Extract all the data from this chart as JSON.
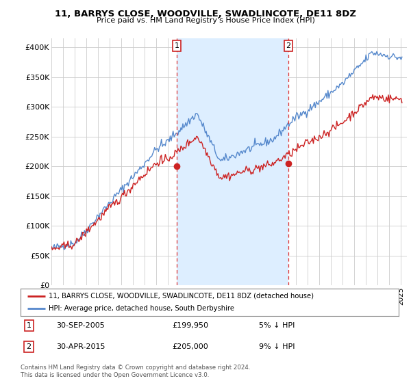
{
  "title": "11, BARRYS CLOSE, WOODVILLE, SWADLINCOTE, DE11 8DZ",
  "subtitle": "Price paid vs. HM Land Registry's House Price Index (HPI)",
  "yticks": [
    0,
    50000,
    100000,
    150000,
    200000,
    250000,
    300000,
    350000,
    400000
  ],
  "ytick_labels": [
    "£0",
    "£50K",
    "£100K",
    "£150K",
    "£200K",
    "£250K",
    "£300K",
    "£350K",
    "£400K"
  ],
  "hpi_color": "#5588cc",
  "price_color": "#cc2222",
  "vline_color": "#dd3333",
  "shade_color": "#ddeeff",
  "legend_label_price": "11, BARRYS CLOSE, WOODVILLE, SWADLINCOTE, DE11 8DZ (detached house)",
  "legend_label_hpi": "HPI: Average price, detached house, South Derbyshire",
  "annotation_1_date": "30-SEP-2005",
  "annotation_1_price": "£199,950",
  "annotation_1_pct": "5% ↓ HPI",
  "annotation_2_date": "30-APR-2015",
  "annotation_2_price": "£205,000",
  "annotation_2_pct": "9% ↓ HPI",
  "footer": "Contains HM Land Registry data © Crown copyright and database right 2024.\nThis data is licensed under the Open Government Licence v3.0.",
  "vline1_x": 2005.75,
  "vline2_x": 2015.33,
  "marker1_x": 2005.75,
  "marker1_y": 199950,
  "marker2_x": 2015.33,
  "marker2_y": 205000,
  "xlim_left": 1995.0,
  "xlim_right": 2025.5,
  "ylim_bottom": 0,
  "ylim_top": 415000
}
